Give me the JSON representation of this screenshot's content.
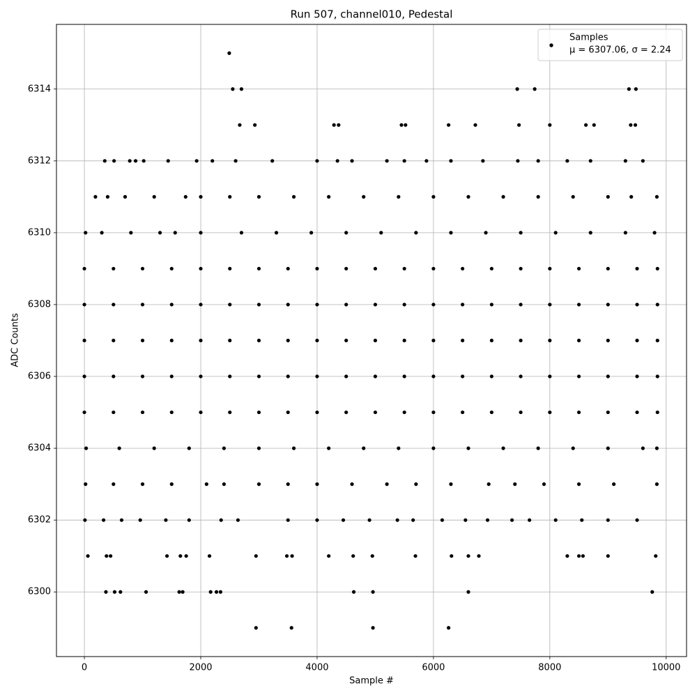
{
  "chart_data": {
    "type": "scatter",
    "title": "Run 507, channel010, Pedestal",
    "x_label": "Sample #",
    "y_label": "ADC Counts",
    "xlim": [
      -480,
      10350
    ],
    "ylim": [
      6298.2,
      6315.8
    ],
    "xticks": [
      0,
      2000,
      4000,
      6000,
      8000,
      10000
    ],
    "yticks": [
      6300,
      6302,
      6304,
      6306,
      6308,
      6310,
      6312,
      6314
    ],
    "grid": true,
    "legend_position": "upper right",
    "legend_note": "μ = 6307.06, σ = 2.24",
    "x": [
      2490,
      2550,
      2700,
      7440,
      7740,
      9360,
      9480,
      2670,
      2930,
      4290,
      4370,
      5450,
      5520,
      6260,
      6720,
      7470,
      8000,
      8620,
      8760,
      9390,
      9470,
      350,
      510,
      780,
      880,
      1020,
      1440,
      1930,
      2200,
      2600,
      3230,
      4000,
      4350,
      4600,
      5200,
      5500,
      5880,
      6300,
      6850,
      7450,
      7800,
      8300,
      8700,
      9300,
      9600,
      190,
      400,
      700,
      1200,
      1740,
      2000,
      2500,
      3000,
      3600,
      4200,
      4800,
      5400,
      6000,
      6600,
      7200,
      7800,
      8400,
      9000,
      9400,
      9840,
      20,
      300,
      800,
      1300,
      1560,
      2000,
      2700,
      3300,
      3900,
      4500,
      5100,
      5700,
      6300,
      6900,
      7500,
      8100,
      8700,
      9300,
      9800,
      0,
      500,
      1000,
      1500,
      2000,
      2500,
      3000,
      3500,
      4000,
      4500,
      5000,
      5500,
      6000,
      6500,
      7000,
      7500,
      8000,
      8500,
      9000,
      9500,
      9850,
      0,
      500,
      1000,
      1500,
      2000,
      2500,
      3000,
      3500,
      4000,
      4500,
      5000,
      5500,
      6000,
      6500,
      7000,
      7500,
      8000,
      8500,
      9000,
      9500,
      9850,
      0,
      500,
      1000,
      1500,
      2000,
      2500,
      3000,
      3500,
      4000,
      4500,
      5000,
      5500,
      6000,
      6500,
      7000,
      7500,
      8000,
      8500,
      9000,
      9500,
      9850,
      0,
      500,
      1000,
      1500,
      2000,
      2500,
      3000,
      3500,
      4000,
      4500,
      5000,
      5500,
      6000,
      6500,
      7000,
      7500,
      8000,
      8500,
      9000,
      9500,
      9850,
      0,
      500,
      1000,
      1500,
      2000,
      2500,
      3000,
      3500,
      4000,
      4500,
      5000,
      5500,
      6000,
      6500,
      7000,
      7500,
      8000,
      8500,
      9000,
      9500,
      9850,
      30,
      600,
      1200,
      1800,
      2400,
      3000,
      3600,
      4200,
      4800,
      5400,
      6000,
      6600,
      7200,
      7800,
      8400,
      9000,
      9600,
      9840,
      20,
      500,
      1000,
      1500,
      2100,
      2400,
      3000,
      3500,
      4000,
      4600,
      5200,
      5700,
      6300,
      6950,
      7400,
      7900,
      8500,
      9100,
      9840,
      10,
      330,
      640,
      960,
      1400,
      1800,
      2350,
      2640,
      3500,
      4000,
      4450,
      4900,
      5380,
      5650,
      6150,
      6550,
      6930,
      7350,
      7650,
      8100,
      8550,
      9000,
      9500,
      60,
      380,
      450,
      1420,
      1650,
      1750,
      2150,
      2950,
      3480,
      3570,
      4200,
      4620,
      4950,
      5690,
      6310,
      6600,
      6780,
      8300,
      8500,
      8570,
      9000,
      9820,
      370,
      520,
      620,
      1060,
      1630,
      1690,
      2170,
      2270,
      2340,
      4630,
      4960,
      6600,
      9760,
      2950,
      3560,
      4960,
      6260
    ],
    "series": [
      {
        "name": "Samples",
        "color": "#000000",
        "values": [
          6315,
          6314,
          6314,
          6314,
          6314,
          6314,
          6314,
          6313,
          6313,
          6313,
          6313,
          6313,
          6313,
          6313,
          6313,
          6313,
          6313,
          6313,
          6313,
          6313,
          6313,
          6312,
          6312,
          6312,
          6312,
          6312,
          6312,
          6312,
          6312,
          6312,
          6312,
          6312,
          6312,
          6312,
          6312,
          6312,
          6312,
          6312,
          6312,
          6312,
          6312,
          6312,
          6312,
          6312,
          6312,
          6311,
          6311,
          6311,
          6311,
          6311,
          6311,
          6311,
          6311,
          6311,
          6311,
          6311,
          6311,
          6311,
          6311,
          6311,
          6311,
          6311,
          6311,
          6311,
          6311,
          6310,
          6310,
          6310,
          6310,
          6310,
          6310,
          6310,
          6310,
          6310,
          6310,
          6310,
          6310,
          6310,
          6310,
          6310,
          6310,
          6310,
          6310,
          6310,
          6309,
          6309,
          6309,
          6309,
          6309,
          6309,
          6309,
          6309,
          6309,
          6309,
          6309,
          6309,
          6309,
          6309,
          6309,
          6309,
          6309,
          6309,
          6309,
          6309,
          6309,
          6308,
          6308,
          6308,
          6308,
          6308,
          6308,
          6308,
          6308,
          6308,
          6308,
          6308,
          6308,
          6308,
          6308,
          6308,
          6308,
          6308,
          6308,
          6308,
          6308,
          6308,
          6307,
          6307,
          6307,
          6307,
          6307,
          6307,
          6307,
          6307,
          6307,
          6307,
          6307,
          6307,
          6307,
          6307,
          6307,
          6307,
          6307,
          6307,
          6307,
          6307,
          6307,
          6306,
          6306,
          6306,
          6306,
          6306,
          6306,
          6306,
          6306,
          6306,
          6306,
          6306,
          6306,
          6306,
          6306,
          6306,
          6306,
          6306,
          6306,
          6306,
          6306,
          6306,
          6305,
          6305,
          6305,
          6305,
          6305,
          6305,
          6305,
          6305,
          6305,
          6305,
          6305,
          6305,
          6305,
          6305,
          6305,
          6305,
          6305,
          6305,
          6305,
          6305,
          6305,
          6304,
          6304,
          6304,
          6304,
          6304,
          6304,
          6304,
          6304,
          6304,
          6304,
          6304,
          6304,
          6304,
          6304,
          6304,
          6304,
          6304,
          6304,
          6303,
          6303,
          6303,
          6303,
          6303,
          6303,
          6303,
          6303,
          6303,
          6303,
          6303,
          6303,
          6303,
          6303,
          6303,
          6303,
          6303,
          6303,
          6303,
          6302,
          6302,
          6302,
          6302,
          6302,
          6302,
          6302,
          6302,
          6302,
          6302,
          6302,
          6302,
          6302,
          6302,
          6302,
          6302,
          6302,
          6302,
          6302,
          6302,
          6302,
          6302,
          6302,
          6301,
          6301,
          6301,
          6301,
          6301,
          6301,
          6301,
          6301,
          6301,
          6301,
          6301,
          6301,
          6301,
          6301,
          6301,
          6301,
          6301,
          6301,
          6301,
          6301,
          6301,
          6301,
          6300,
          6300,
          6300,
          6300,
          6300,
          6300,
          6300,
          6300,
          6300,
          6300,
          6300,
          6300,
          6300,
          6299,
          6299,
          6299,
          6299
        ]
      }
    ]
  }
}
